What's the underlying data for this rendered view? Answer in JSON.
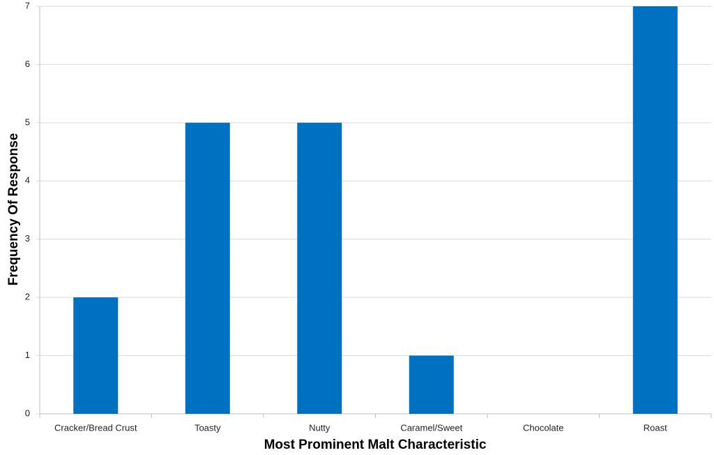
{
  "chart_data": {
    "type": "bar",
    "xlabel": "Most Prominent Malt Characteristic",
    "ylabel": "Frequency Of Response",
    "categories": [
      "Cracker/Bread Crust",
      "Toasty",
      "Nutty",
      "Caramel/Sweet",
      "Chocolate",
      "Roast"
    ],
    "values": [
      2,
      5,
      5,
      1,
      0,
      7
    ],
    "color": "#0070c0",
    "ylim": [
      0,
      7
    ],
    "yticks": [
      0,
      1,
      2,
      3,
      4,
      5,
      6,
      7
    ],
    "grid": true
  }
}
